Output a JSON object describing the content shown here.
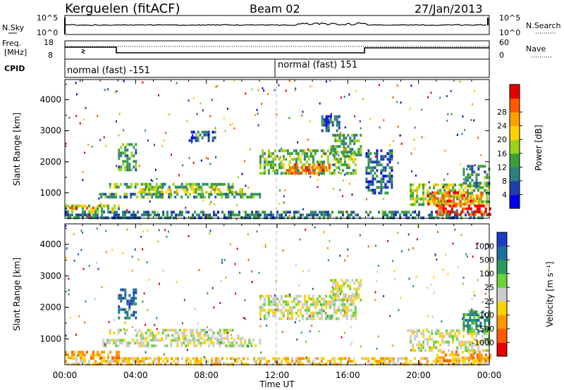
{
  "header": {
    "station": "Kerguelen (fitACF)",
    "beam": "Beam 02",
    "date": "27/Jan/2013"
  },
  "nsky_panel": {
    "left_label": "N.Sky",
    "right_label": "N.Search",
    "ticks_left": [
      "10^5",
      "10^0"
    ],
    "ticks_right": [
      "10^5",
      "10^0"
    ]
  },
  "freq_panel": {
    "left_label_1": "Freq.",
    "left_label_2": "[MHz]",
    "right_label": "Nave",
    "ticks_left": [
      "18",
      "8"
    ],
    "ticks_right": [
      "60",
      "0"
    ]
  },
  "cpid_panel": {
    "label": "CPID",
    "segments": [
      {
        "text": "normal (fast) -151",
        "start_hour": 0
      },
      {
        "text": "normal (fast) 151",
        "start_hour": 12
      }
    ]
  },
  "time_axis": {
    "label": "Time UT",
    "ticks": [
      "00:00",
      "04:00",
      "08:00",
      "12:00",
      "16:00",
      "20:00",
      "00:00"
    ]
  },
  "chart_data": [
    {
      "type": "heatmap",
      "name_ref": "power",
      "ylabel": "Slant Range [km]",
      "yticks": [
        "1000",
        "2000",
        "3000",
        "4000"
      ],
      "ylim": [
        180,
        4650
      ],
      "xlim_hours": [
        0,
        24
      ],
      "colorbar": {
        "label": "Power [dB]",
        "range": [
          0,
          32
        ],
        "ticks": [
          "4",
          "8",
          "12",
          "16",
          "20",
          "24",
          "28"
        ],
        "colors": [
          "#0000ee",
          "#1e3fae",
          "#2e7f7e",
          "#3c9e3c",
          "#9cd21c",
          "#ffd200",
          "#ffa000",
          "#ff5a00",
          "#e80000"
        ]
      },
      "echo_regions": [
        {
          "t0": 0.0,
          "t1": 24.0,
          "r0": 220,
          "r1": 420,
          "v": 6
        },
        {
          "t0": 0.0,
          "t1": 3.0,
          "r0": 420,
          "r1": 620,
          "v": 12
        },
        {
          "t0": 0.0,
          "t1": 2.0,
          "r0": 480,
          "r1": 560,
          "v": 22
        },
        {
          "t0": 2.0,
          "t1": 11.0,
          "r0": 820,
          "r1": 1000,
          "v": 8
        },
        {
          "t0": 4.0,
          "t1": 10.0,
          "r0": 1000,
          "r1": 1150,
          "v": 14
        },
        {
          "t0": 2.5,
          "t1": 9.5,
          "r0": 1150,
          "r1": 1320,
          "v": 10
        },
        {
          "t0": 3.0,
          "t1": 4.0,
          "r0": 1700,
          "r1": 2600,
          "v": 9
        },
        {
          "t0": 11.0,
          "t1": 16.5,
          "r0": 1600,
          "r1": 2400,
          "v": 10
        },
        {
          "t0": 12.5,
          "t1": 15.0,
          "r0": 1650,
          "r1": 1950,
          "v": 20
        },
        {
          "t0": 15.0,
          "t1": 16.7,
          "r0": 2200,
          "r1": 2900,
          "v": 9
        },
        {
          "t0": 7.0,
          "t1": 8.5,
          "r0": 2700,
          "r1": 3000,
          "v": 5
        },
        {
          "t0": 14.5,
          "t1": 15.5,
          "r0": 3000,
          "r1": 3500,
          "v": 5
        },
        {
          "t0": 19.5,
          "t1": 24.0,
          "r0": 600,
          "r1": 1300,
          "v": 12
        },
        {
          "t0": 20.5,
          "t1": 23.5,
          "r0": 650,
          "r1": 1050,
          "v": 20
        },
        {
          "t0": 21.0,
          "t1": 24.0,
          "r0": 300,
          "r1": 620,
          "v": 24
        },
        {
          "t0": 22.5,
          "t1": 24.0,
          "r0": 1200,
          "r1": 1900,
          "v": 7
        },
        {
          "t0": 17.0,
          "t1": 18.5,
          "r0": 1000,
          "r1": 2400,
          "v": 5
        }
      ]
    },
    {
      "type": "heatmap",
      "name_ref": "velocity",
      "ylabel": "Slant Range [km]",
      "yticks": [
        "1000",
        "2000",
        "3000",
        "4000"
      ],
      "ylim": [
        180,
        4650
      ],
      "xlim_hours": [
        0,
        24
      ],
      "colorbar": {
        "label": "Velocity [m s⁻¹]",
        "ticks": [
          "1000",
          "500",
          "100",
          "25",
          "-25",
          "-100",
          "-500",
          "-1000"
        ],
        "colors": [
          "#1c3cc8",
          "#1e6e9e",
          "#2e9a5a",
          "#6cd23c",
          "#cbcbcb",
          "#ffd200",
          "#ff9600",
          "#ff5a00",
          "#e80000"
        ]
      },
      "echo_regions": [
        {
          "t0": 0.0,
          "t1": 24.0,
          "r0": 220,
          "r1": 420,
          "v": 5
        },
        {
          "t0": 0.0,
          "t1": 3.0,
          "r0": 420,
          "r1": 620,
          "v": 6
        },
        {
          "t0": 2.0,
          "t1": 11.0,
          "r0": 820,
          "r1": 1000,
          "v": 4
        },
        {
          "t0": 4.0,
          "t1": 10.0,
          "r0": 1000,
          "r1": 1150,
          "v": 4
        },
        {
          "t0": 2.5,
          "t1": 9.5,
          "r0": 1150,
          "r1": 1320,
          "v": 4
        },
        {
          "t0": 3.0,
          "t1": 4.0,
          "r0": 1700,
          "r1": 2600,
          "v": 1
        },
        {
          "t0": 11.0,
          "t1": 16.5,
          "r0": 1600,
          "r1": 2400,
          "v": 4
        },
        {
          "t0": 15.0,
          "t1": 16.7,
          "r0": 2200,
          "r1": 2900,
          "v": 4
        },
        {
          "t0": 19.5,
          "t1": 24.0,
          "r0": 600,
          "r1": 1300,
          "v": 4
        },
        {
          "t0": 21.0,
          "t1": 24.0,
          "r0": 300,
          "r1": 620,
          "v": 6
        },
        {
          "t0": 22.5,
          "t1": 24.0,
          "r0": 1200,
          "r1": 1900,
          "v": 2
        }
      ]
    }
  ]
}
